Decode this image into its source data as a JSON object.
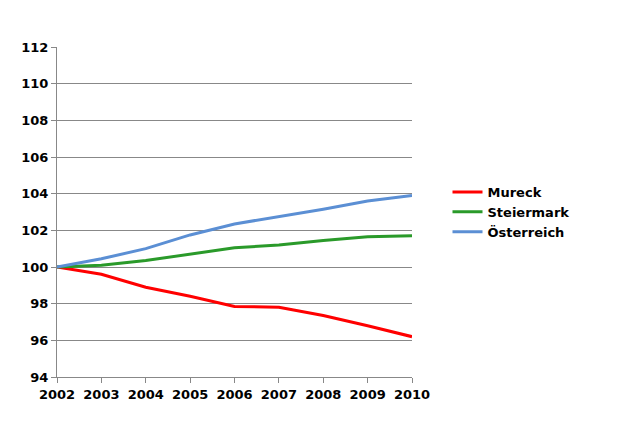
{
  "chart_data": {
    "type": "line",
    "x": [
      2002,
      2003,
      2004,
      2005,
      2006,
      2007,
      2008,
      2009,
      2010
    ],
    "series": [
      {
        "name": "Mureck",
        "color": "#ff0000",
        "values": [
          100,
          99.6,
          98.9,
          98.4,
          97.85,
          97.8,
          97.35,
          96.8,
          96.2
        ]
      },
      {
        "name": "Steiermark",
        "color": "#2a9a2a",
        "values": [
          100,
          100.1,
          100.35,
          100.7,
          101.05,
          101.2,
          101.45,
          101.65,
          101.7
        ]
      },
      {
        "name": "Österreich",
        "color": "#5b8fd4",
        "values": [
          100,
          100.45,
          101.0,
          101.75,
          102.35,
          102.75,
          103.15,
          103.6,
          103.9
        ]
      }
    ],
    "xlim": [
      2002,
      2010
    ],
    "xticks": [
      2002,
      2003,
      2004,
      2005,
      2006,
      2007,
      2008,
      2009,
      2010
    ],
    "ylim": [
      94,
      112
    ],
    "yticks": [
      94,
      96,
      98,
      100,
      102,
      104,
      106,
      108,
      110,
      112
    ],
    "grid": true,
    "legend": "right"
  }
}
